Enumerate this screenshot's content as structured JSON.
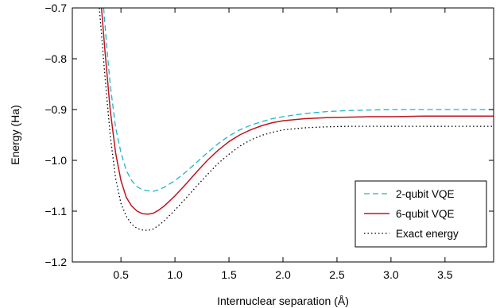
{
  "chart_data": {
    "type": "line",
    "xlabel": "Internuclear separation (Å)",
    "ylabel": "Energy (Ha)",
    "xlim": [
      0.05,
      3.95
    ],
    "ylim": [
      -1.2,
      -0.7
    ],
    "x_ticks": [
      0.5,
      1.0,
      1.5,
      2.0,
      2.5,
      3.0,
      3.5
    ],
    "x_tick_labels": [
      "0.5",
      "1.0",
      "1.5",
      "2.0",
      "2.5",
      "3.0",
      "3.5"
    ],
    "y_ticks": [
      -1.2,
      -1.1,
      -1.0,
      -0.9,
      -0.8,
      -0.7
    ],
    "y_tick_labels": [
      "−1.2",
      "−1.1",
      "−1.0",
      "−0.9",
      "−0.8",
      "−0.7"
    ],
    "grid": false,
    "legend_position": "bottom-right",
    "series": [
      {
        "name": "2-qubit VQE",
        "color": "#1fb5c8",
        "style": "dashed",
        "x": [
          0.34,
          0.37,
          0.4,
          0.45,
          0.5,
          0.55,
          0.6,
          0.65,
          0.7,
          0.75,
          0.8,
          0.85,
          0.9,
          1.0,
          1.1,
          1.2,
          1.3,
          1.4,
          1.5,
          1.6,
          1.7,
          1.8,
          1.9,
          2.0,
          2.2,
          2.4,
          2.6,
          2.8,
          3.0,
          3.3,
          3.6,
          3.95
        ],
        "y": [
          -0.7,
          -0.78,
          -0.85,
          -0.935,
          -0.985,
          -1.02,
          -1.04,
          -1.052,
          -1.058,
          -1.06,
          -1.061,
          -1.058,
          -1.053,
          -1.04,
          -1.023,
          -1.004,
          -0.985,
          -0.967,
          -0.952,
          -0.94,
          -0.931,
          -0.924,
          -0.918,
          -0.914,
          -0.908,
          -0.904,
          -0.902,
          -0.901,
          -0.9,
          -0.9,
          -0.9,
          -0.9
        ]
      },
      {
        "name": "6-qubit VQE",
        "color": "#c0141e",
        "style": "solid",
        "x": [
          0.32,
          0.35,
          0.4,
          0.45,
          0.5,
          0.55,
          0.6,
          0.65,
          0.7,
          0.75,
          0.8,
          0.85,
          0.9,
          1.0,
          1.1,
          1.2,
          1.3,
          1.4,
          1.5,
          1.6,
          1.7,
          1.8,
          1.9,
          2.0,
          2.2,
          2.4,
          2.6,
          2.8,
          3.0,
          3.3,
          3.6,
          3.95
        ],
        "y": [
          -0.7,
          -0.78,
          -0.9,
          -0.985,
          -1.04,
          -1.073,
          -1.09,
          -1.1,
          -1.105,
          -1.106,
          -1.104,
          -1.098,
          -1.09,
          -1.07,
          -1.047,
          -1.023,
          -1.0,
          -0.98,
          -0.963,
          -0.95,
          -0.94,
          -0.932,
          -0.926,
          -0.922,
          -0.918,
          -0.916,
          -0.915,
          -0.914,
          -0.914,
          -0.913,
          -0.913,
          -0.913
        ]
      },
      {
        "name": "Exact energy",
        "color": "#000000",
        "style": "dotted",
        "x": [
          0.3,
          0.35,
          0.4,
          0.45,
          0.5,
          0.55,
          0.6,
          0.65,
          0.7,
          0.75,
          0.8,
          0.85,
          0.9,
          1.0,
          1.1,
          1.2,
          1.3,
          1.4,
          1.5,
          1.6,
          1.7,
          1.8,
          1.9,
          2.0,
          2.2,
          2.4,
          2.6,
          2.8,
          3.0,
          3.3,
          3.6,
          3.95
        ],
        "y": [
          -0.7,
          -0.83,
          -0.95,
          -1.035,
          -1.085,
          -1.11,
          -1.126,
          -1.134,
          -1.137,
          -1.138,
          -1.135,
          -1.128,
          -1.119,
          -1.098,
          -1.075,
          -1.051,
          -1.028,
          -1.006,
          -0.988,
          -0.972,
          -0.96,
          -0.951,
          -0.945,
          -0.94,
          -0.936,
          -0.934,
          -0.933,
          -0.933,
          -0.933,
          -0.933,
          -0.933,
          -0.933
        ]
      }
    ]
  }
}
